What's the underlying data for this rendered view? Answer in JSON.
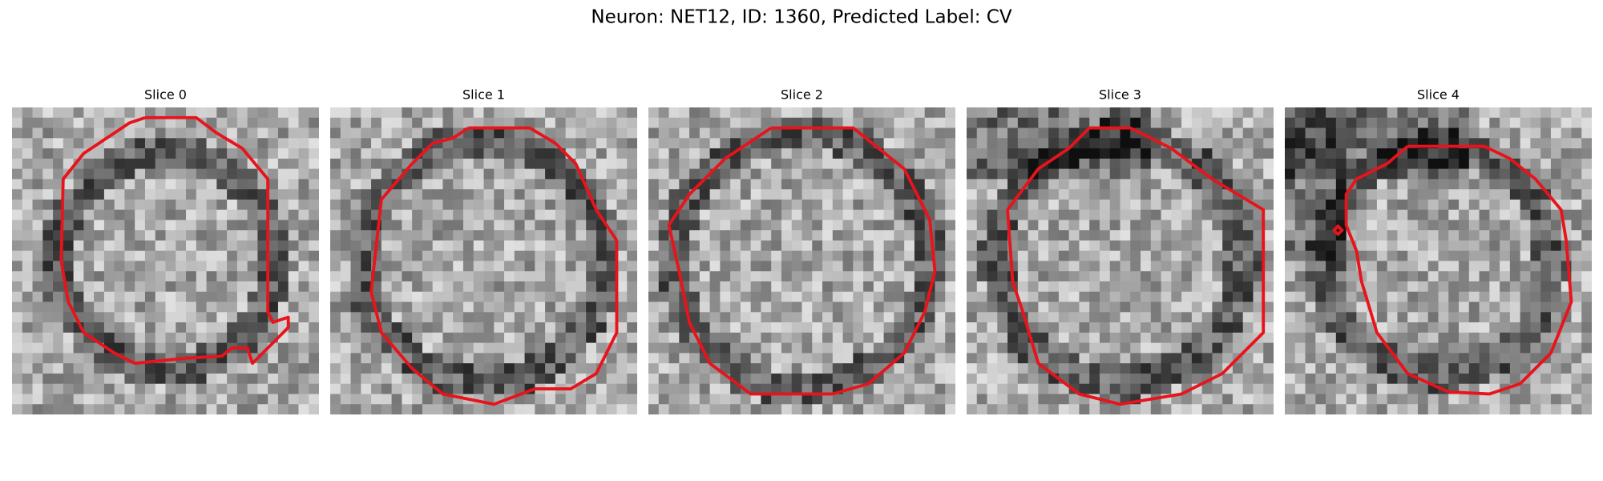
{
  "title": "Neuron: NET12, ID: 1360, Predicted Label: CV",
  "panels": [
    {
      "title": "Slice 0"
    },
    {
      "title": "Slice 1"
    },
    {
      "title": "Slice 2"
    },
    {
      "title": "Slice 3"
    },
    {
      "title": "Slice 4"
    }
  ]
}
